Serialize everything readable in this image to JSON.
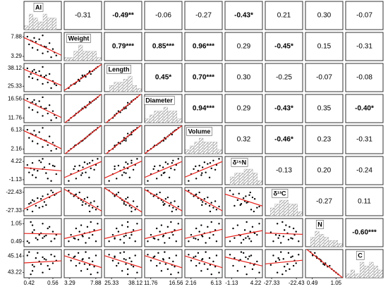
{
  "chart_data": {
    "type": "scatter-matrix",
    "variables": [
      {
        "name": "Al",
        "lim": [
          0.39,
          0.61
        ],
        "ticks": [
          0.42,
          0.56
        ],
        "values": [
          0.55,
          0.58,
          0.5,
          0.53,
          0.47,
          0.56,
          0.44,
          0.51,
          0.49,
          0.42,
          0.54,
          0.46,
          0.43,
          0.48,
          0.45,
          0.41,
          0.5,
          0.57,
          0.52,
          0.44
        ]
      },
      {
        "name": "Weight",
        "lim": [
          2.3,
          8.9
        ],
        "ticks": [
          3.29,
          7.88
        ],
        "values": [
          3.1,
          3.5,
          4.0,
          4.4,
          4.8,
          5.0,
          5.3,
          5.6,
          5.9,
          6.1,
          6.4,
          6.7,
          7.0,
          7.3,
          7.6,
          7.9,
          8.2,
          4.2,
          5.5,
          6.8
        ]
      },
      {
        "name": "Length",
        "lim": [
          21.5,
          41.5
        ],
        "ticks": [
          25.33,
          38.12
        ],
        "values": [
          24,
          26,
          27,
          28,
          30,
          29,
          31,
          32,
          33,
          32,
          34,
          35,
          34,
          36,
          37,
          38,
          39,
          27,
          33,
          36
        ]
      },
      {
        "name": "Diameter",
        "lim": [
          10.6,
          17.7
        ],
        "ticks": [
          11.76,
          16.56
        ],
        "values": [
          11.2,
          11.8,
          12.3,
          12.9,
          13.2,
          13.5,
          13.8,
          14.1,
          14.6,
          14.4,
          15.0,
          15.3,
          15.6,
          16.0,
          16.3,
          16.6,
          17.0,
          12.5,
          14.2,
          15.8
        ]
      },
      {
        "name": "Volume",
        "lim": [
          1.2,
          7.1
        ],
        "ticks": [
          2.16,
          6.13
        ],
        "values": [
          1.8,
          2.2,
          2.6,
          3.0,
          3.3,
          3.5,
          3.8,
          4.0,
          4.3,
          4.5,
          4.8,
          5.1,
          5.4,
          5.7,
          6.0,
          6.2,
          6.6,
          2.9,
          3.9,
          5.2
        ]
      },
      {
        "name": "δ¹⁵N",
        "lim": [
          -2.6,
          5.7
        ],
        "ticks": [
          -1.13,
          4.22
        ],
        "values": [
          -1.5,
          0.5,
          2.0,
          -0.8,
          1.5,
          3.0,
          0.2,
          2.5,
          4.0,
          1.0,
          3.5,
          -0.5,
          2.2,
          4.5,
          1.8,
          3.2,
          5.0,
          2.8,
          0.8,
          3.8
        ]
      },
      {
        "name": "δ¹³C",
        "lim": [
          -28.6,
          -21.2
        ],
        "ticks": [
          -27.33,
          -22.43
        ],
        "values": [
          -22.0,
          -22.8,
          -23.5,
          -23.0,
          -24.0,
          -22.5,
          -24.5,
          -25.0,
          -24.2,
          -25.5,
          -23.8,
          -26.0,
          -25.2,
          -26.5,
          -24.8,
          -27.0,
          -26.2,
          -23.2,
          -25.8,
          -27.5
        ]
      },
      {
        "name": "N",
        "lim": [
          0.33,
          1.21
        ],
        "ticks": [
          0.49,
          1.05
        ],
        "values": [
          0.5,
          0.7,
          0.6,
          0.9,
          0.55,
          0.8,
          1.0,
          0.65,
          0.75,
          0.45,
          0.95,
          0.6,
          1.1,
          0.7,
          0.85,
          0.5,
          1.05,
          0.58,
          0.68,
          0.78
        ]
      },
      {
        "name": "C",
        "lim": [
          42.6,
          45.9
        ],
        "ticks": [
          43.22,
          45.14
        ],
        "values": [
          45.3,
          44.6,
          45.0,
          44.0,
          45.5,
          44.3,
          43.4,
          44.8,
          44.2,
          45.6,
          43.6,
          44.9,
          43.0,
          44.5,
          43.9,
          45.2,
          43.2,
          45.1,
          44.7,
          44.1
        ]
      }
    ],
    "correlations": [
      [
        "-0.31",
        "-0.49**",
        "-0.06",
        "-0.27",
        "-0.43*",
        "0.21",
        "0.30",
        "-0.07"
      ],
      [
        "0.79***",
        "0.85***",
        "0.96***",
        "0.29",
        "-0.45*",
        "0.15",
        "-0.31"
      ],
      [
        "0.45*",
        "0.70***",
        "0.30",
        "-0.25",
        "-0.07",
        "-0.08"
      ],
      [
        "0.94***",
        "0.29",
        "-0.43*",
        "0.35",
        "-0.40*"
      ],
      [
        "0.32",
        "-0.46*",
        "0.23",
        "-0.31"
      ],
      [
        "-0.13",
        "0.20",
        "-0.24"
      ],
      [
        "-0.27",
        "0.11"
      ],
      [
        "-0.60***"
      ]
    ],
    "point_color": "#000000",
    "line_color": "#e8201a",
    "hist_color": "#8c8c8c"
  }
}
